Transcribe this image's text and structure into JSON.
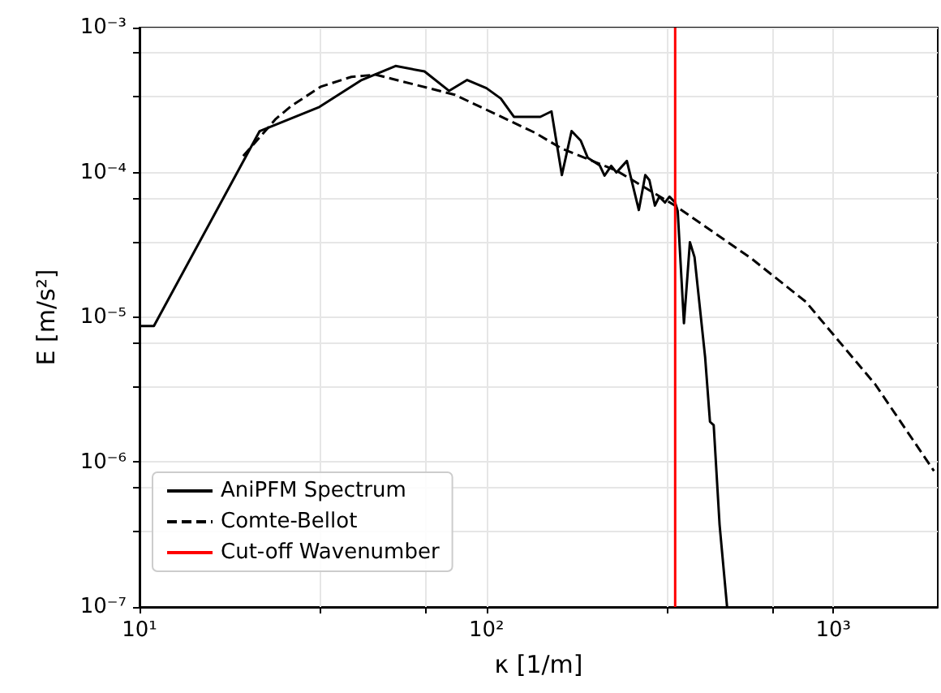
{
  "chart_data": {
    "type": "line",
    "xlabel": "κ [1/m]",
    "ylabel": "E [m/s²]",
    "log": "xy",
    "grid": true,
    "legend": "bottom left",
    "marker": "none",
    "xlim": [
      10,
      2000
    ],
    "ylim": [
      1e-07,
      0.001
    ],
    "xticks": [
      {
        "value": 10,
        "label": "10¹"
      },
      {
        "value": 33.3,
        "label": null
      },
      {
        "value": 66.7,
        "label": null
      },
      {
        "value": 100,
        "label": "10²"
      },
      {
        "value": 333,
        "label": null
      },
      {
        "value": 667,
        "label": null
      },
      {
        "value": 1000,
        "label": "10³"
      }
    ],
    "yticks": [
      {
        "value": 1e-07,
        "label": "10⁻⁷"
      },
      {
        "value": 3.33e-07,
        "label": null
      },
      {
        "value": 6.67e-07,
        "label": null
      },
      {
        "value": 1e-06,
        "label": "10⁻⁶"
      },
      {
        "value": 3.33e-06,
        "label": null
      },
      {
        "value": 6.67e-06,
        "label": null
      },
      {
        "value": 1e-05,
        "label": "10⁻⁵"
      },
      {
        "value": 3.33e-05,
        "label": null
      },
      {
        "value": 6.67e-05,
        "label": null
      },
      {
        "value": 0.0001,
        "label": "10⁻⁴"
      },
      {
        "value": 0.000333,
        "label": null
      },
      {
        "value": 0.000667,
        "label": null
      },
      {
        "value": 0.001,
        "label": "10⁻³"
      }
    ],
    "series": [
      {
        "name": "AniPFM Spectrum",
        "color": "#000000",
        "line_style": "solid",
        "x": [
          10,
          11,
          22.2,
          33,
          43.7,
          54.7,
          66.3,
          78,
          88,
          100,
          110,
          120,
          143,
          154,
          165,
          176,
          187,
          196,
          212,
          219,
          229,
          237,
          254,
          275,
          287,
          295,
          306,
          315,
          327,
          337,
          350,
          356,
          371,
          386,
          398,
          427,
          441,
          452,
          470,
          494
        ],
        "values": [
          8.7e-06,
          8.7e-06,
          0.000193,
          0.000283,
          0.000435,
          0.000543,
          0.000498,
          0.000366,
          0.000435,
          0.000382,
          0.000324,
          0.000242,
          0.000242,
          0.000264,
          9.6e-05,
          0.000193,
          0.000166,
          0.000126,
          0.000112,
          9.5e-05,
          0.000111,
          0.0001,
          0.00012,
          5.5e-05,
          9.6e-05,
          8.85e-05,
          5.9e-05,
          6.8e-05,
          6.2e-05,
          6.8e-05,
          6.2e-05,
          5.4e-05,
          9.1e-06,
          3.3e-05,
          2.6e-05,
          5.3e-06,
          1.9e-06,
          1.8e-06,
          3.7e-07,
          1e-07
        ]
      },
      {
        "name": "Comte-Bellot",
        "color": "#000000",
        "line_style": "dashed",
        "x": [
          19.9,
          24.7,
          27.5,
          33.4,
          40.8,
          47.9,
          81,
          138,
          165,
          237,
          350,
          580,
          833,
          1000,
          1320,
          1950
        ],
        "values": [
          0.00013,
          0.000234,
          0.00029,
          0.000392,
          0.000457,
          0.000473,
          0.000344,
          0.000188,
          0.000146,
          0.000103,
          5.9e-05,
          2.55e-05,
          1.28e-05,
          7.6e-06,
          3.45e-06,
          8.7e-07
        ]
      },
      {
        "name": "Cut-off Wavenumber",
        "color": "#ff0000",
        "line_style": "solid",
        "x": [
          350,
          350
        ],
        "values": [
          1e-07,
          0.001
        ]
      }
    ]
  }
}
